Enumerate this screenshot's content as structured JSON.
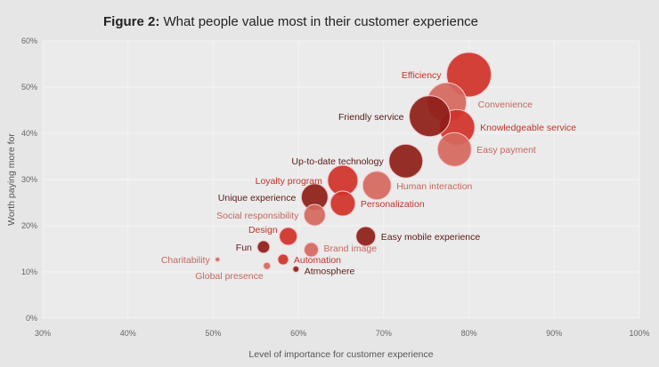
{
  "chart_data": {
    "type": "scatter",
    "title_prefix": "Figure 2:",
    "title": "What people value most in their customer experience",
    "xlabel": "Level of importance for customer experience",
    "ylabel": "Worth paying more for",
    "xlim": [
      30,
      100
    ],
    "ylim": [
      0,
      60
    ],
    "xticks": [
      "30%",
      "40%",
      "50%",
      "60%",
      "70%",
      "80%",
      "90%",
      "100%"
    ],
    "yticks": [
      "0%",
      "10%",
      "20%",
      "30%",
      "40%",
      "50%",
      "60%"
    ],
    "grid": true,
    "colors": {
      "dark": "#8e1d17",
      "mid": "#cf3128",
      "light": "#d5675d"
    },
    "label_colors": {
      "dark": "#5b1a15",
      "mid": "#c3332a",
      "light": "#c2685f"
    },
    "points": [
      {
        "label": "Efficiency",
        "x": 80.0,
        "y": 52.7,
        "size": 25,
        "shade": "mid",
        "label_side": "left"
      },
      {
        "label": "Convenience",
        "x": 77.4,
        "y": 46.7,
        "size": 22,
        "shade": "light",
        "label_side": "right"
      },
      {
        "label": "Knowledgeable service",
        "x": 78.6,
        "y": 41.3,
        "size": 20,
        "shade": "mid",
        "label_side": "right"
      },
      {
        "label": "Friendly service",
        "x": 75.4,
        "y": 43.7,
        "size": 23,
        "shade": "dark",
        "label_side": "left"
      },
      {
        "label": "Easy payment",
        "x": 78.3,
        "y": 36.5,
        "size": 19,
        "shade": "light",
        "label_side": "right"
      },
      {
        "label": "Up-to-date technology",
        "x": 72.6,
        "y": 34.0,
        "size": 19,
        "shade": "dark",
        "label_side": "left"
      },
      {
        "label": "Human interaction",
        "x": 69.2,
        "y": 28.7,
        "size": 16,
        "shade": "light",
        "label_side": "right"
      },
      {
        "label": "Loyalty program",
        "x": 65.2,
        "y": 29.8,
        "size": 17,
        "shade": "mid",
        "label_side": "left"
      },
      {
        "label": "Personalization",
        "x": 65.2,
        "y": 24.8,
        "size": 14,
        "shade": "mid",
        "label_side": "right"
      },
      {
        "label": "Unique experience",
        "x": 61.9,
        "y": 26.2,
        "size": 15,
        "shade": "dark",
        "label_side": "left"
      },
      {
        "label": "Social responsibility",
        "x": 61.9,
        "y": 22.3,
        "size": 12,
        "shade": "light",
        "label_side": "left"
      },
      {
        "label": "Design",
        "x": 58.8,
        "y": 17.7,
        "size": 10,
        "shade": "mid",
        "label_side": "above-left"
      },
      {
        "label": "Easy mobile experience",
        "x": 67.9,
        "y": 17.7,
        "size": 11,
        "shade": "dark",
        "label_side": "right"
      },
      {
        "label": "Fun",
        "x": 55.9,
        "y": 15.4,
        "size": 7,
        "shade": "dark",
        "label_side": "left"
      },
      {
        "label": "Brand image",
        "x": 61.5,
        "y": 14.8,
        "size": 8,
        "shade": "light",
        "label_side": "right"
      },
      {
        "label": "Charitability",
        "x": 50.5,
        "y": 12.7,
        "size": 2.5,
        "shade": "light",
        "label_side": "left"
      },
      {
        "label": "Automation",
        "x": 58.2,
        "y": 12.7,
        "size": 6,
        "shade": "mid",
        "label_side": "right"
      },
      {
        "label": "Global presence",
        "x": 56.3,
        "y": 11.3,
        "size": 4,
        "shade": "light",
        "label_side": "below-left"
      },
      {
        "label": "Atmosphere",
        "x": 59.7,
        "y": 10.6,
        "size": 3.5,
        "shade": "dark",
        "label_side": "right"
      }
    ]
  }
}
